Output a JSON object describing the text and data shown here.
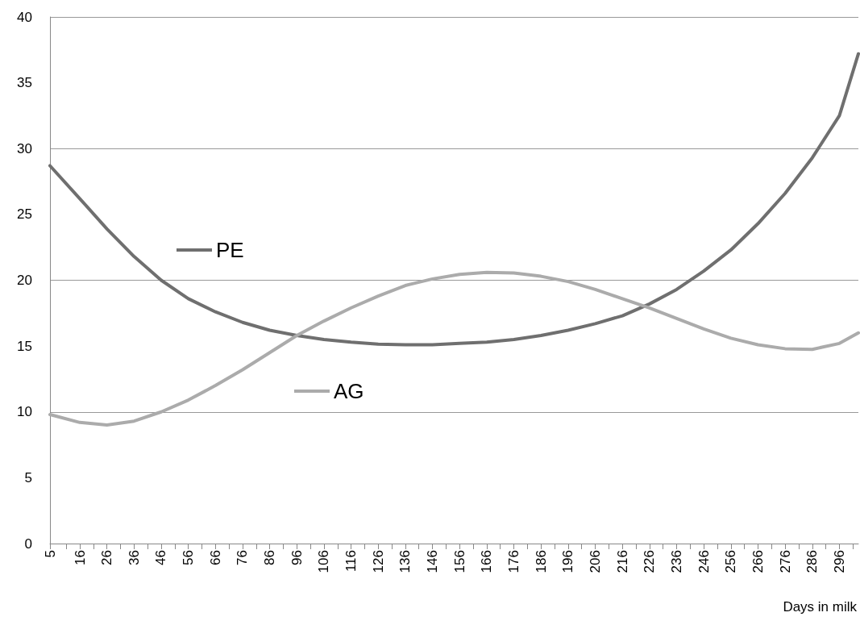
{
  "chart_data": {
    "type": "line",
    "xlabel": "Days in milk",
    "x": [
      5,
      16,
      26,
      36,
      46,
      56,
      66,
      76,
      86,
      96,
      106,
      116,
      126,
      136,
      146,
      156,
      166,
      176,
      186,
      196,
      206,
      216,
      226,
      236,
      246,
      256,
      266,
      276,
      286,
      296,
      303
    ],
    "series": [
      {
        "name": "PE",
        "color": "#6f6f6f",
        "values": [
          28.7,
          26.2,
          23.9,
          21.8,
          20.0,
          18.6,
          17.6,
          16.8,
          16.2,
          15.8,
          15.5,
          15.3,
          15.15,
          15.1,
          15.1,
          15.2,
          15.3,
          15.5,
          15.8,
          16.2,
          16.7,
          17.3,
          18.2,
          19.3,
          20.7,
          22.3,
          24.3,
          26.6,
          29.3,
          32.5,
          37.2
        ]
      },
      {
        "name": "AG",
        "color": "#ababab",
        "values": [
          9.8,
          9.2,
          9.0,
          9.3,
          10.0,
          10.9,
          12.0,
          13.2,
          14.5,
          15.8,
          16.9,
          17.9,
          18.8,
          19.6,
          20.1,
          20.45,
          20.6,
          20.55,
          20.3,
          19.9,
          19.3,
          18.6,
          17.9,
          17.1,
          16.3,
          15.6,
          15.1,
          14.8,
          14.75,
          15.2,
          16.0
        ]
      }
    ],
    "xlim": [
      5,
      303
    ],
    "xticks": [
      5,
      {
        "value": 11,
        "label": null
      },
      16,
      {
        "value": 21,
        "label": null
      },
      26,
      {
        "value": 31,
        "label": null
      },
      36,
      {
        "value": 41,
        "label": null
      },
      46,
      {
        "value": 51,
        "label": null
      },
      56,
      {
        "value": 61,
        "label": null
      },
      66,
      {
        "value": 71,
        "label": null
      },
      76,
      {
        "value": 81,
        "label": null
      },
      86,
      {
        "value": 91,
        "label": null
      },
      96,
      {
        "value": 101,
        "label": null
      },
      106,
      {
        "value": 111,
        "label": null
      },
      116,
      {
        "value": 121,
        "label": null
      },
      126,
      {
        "value": 131,
        "label": null
      },
      136,
      {
        "value": 141,
        "label": null
      },
      146,
      {
        "value": 151,
        "label": null
      },
      156,
      {
        "value": 161,
        "label": null
      },
      166,
      {
        "value": 171,
        "label": null
      },
      176,
      {
        "value": 181,
        "label": null
      },
      186,
      {
        "value": 191,
        "label": null
      },
      196,
      {
        "value": 201,
        "label": null
      },
      206,
      {
        "value": 211,
        "label": null
      },
      216,
      {
        "value": 221,
        "label": null
      },
      226,
      {
        "value": 231,
        "label": null
      },
      236,
      {
        "value": 241,
        "label": null
      },
      246,
      {
        "value": 251,
        "label": null
      },
      256,
      {
        "value": 261,
        "label": null
      },
      266,
      {
        "value": 271,
        "label": null
      },
      276,
      {
        "value": 281,
        "label": null
      },
      286,
      {
        "value": 291,
        "label": null
      },
      296,
      {
        "value": 301,
        "label": null
      }
    ],
    "ylim": [
      0,
      40
    ],
    "yticks": [
      0,
      5,
      10,
      15,
      20,
      25,
      30,
      35,
      40
    ],
    "grid": "y",
    "legend": "left",
    "marker": "none",
    "line_style": "solid"
  }
}
